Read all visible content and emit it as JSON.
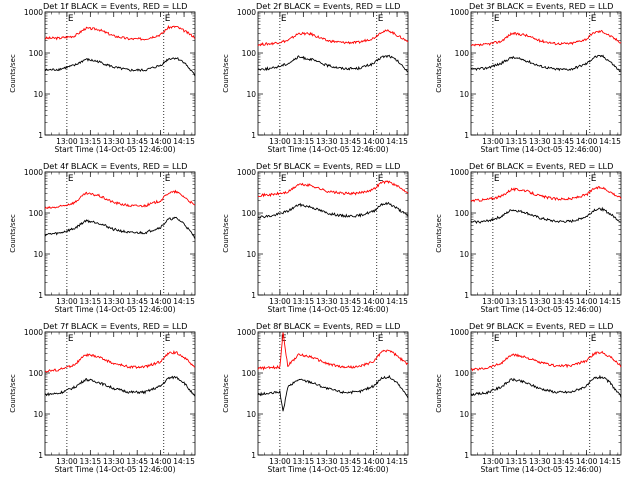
{
  "figure": {
    "footer_label": "Start Time (14-Oct-05 12:46:00)",
    "ylabel": "Counts/sec",
    "marker_letters": [
      "E",
      "E"
    ],
    "colors": {
      "events": "#000000",
      "lld": "#ff0000"
    }
  },
  "chart_data": [
    {
      "type": "line",
      "title": "Det 1f BLACK = Events, RED = LLD",
      "xlabel": "Start Time (14-Oct-05 12:46:00)",
      "ylabel": "Counts/sec",
      "yscale": "log",
      "ylim": [
        1,
        1000
      ],
      "xlim": [
        "12:46",
        "14:22"
      ],
      "xticks": [
        "13:00",
        "13:15",
        "13:30",
        "13:45",
        "14:00",
        "14:15"
      ],
      "yticks": [
        "1",
        "10",
        "100",
        "1000"
      ],
      "markers": [
        "13:00",
        "14:02"
      ],
      "series": [
        {
          "key": "lld",
          "color": "#ff0000",
          "x": [
            "12:46",
            "12:55",
            "13:05",
            "13:12",
            "13:20",
            "13:30",
            "13:40",
            "13:50",
            "14:00",
            "14:05",
            "14:10",
            "14:15",
            "14:22"
          ],
          "values": [
            230,
            230,
            260,
            400,
            380,
            260,
            220,
            220,
            280,
            420,
            440,
            350,
            240
          ]
        },
        {
          "key": "events",
          "color": "#000000",
          "x": [
            "12:46",
            "12:55",
            "13:05",
            "13:12",
            "13:20",
            "13:30",
            "13:40",
            "13:50",
            "14:00",
            "14:05",
            "14:10",
            "14:15",
            "14:22"
          ],
          "values": [
            38,
            40,
            50,
            70,
            62,
            45,
            38,
            38,
            50,
            72,
            76,
            60,
            28
          ]
        }
      ]
    },
    {
      "type": "line",
      "title": "Det 2f BLACK = Events, RED = LLD",
      "xlabel": "Start Time (14-Oct-05 12:46:00)",
      "ylabel": "Counts/sec",
      "yscale": "log",
      "ylim": [
        1,
        1000
      ],
      "xlim": [
        "12:46",
        "14:22"
      ],
      "xticks": [
        "13:00",
        "13:15",
        "13:30",
        "13:45",
        "14:00",
        "14:15"
      ],
      "yticks": [
        "1",
        "10",
        "100",
        "1000"
      ],
      "markers": [
        "13:00",
        "14:02"
      ],
      "series": [
        {
          "key": "lld",
          "color": "#ff0000",
          "x": [
            "12:46",
            "12:55",
            "13:05",
            "13:12",
            "13:20",
            "13:30",
            "13:40",
            "13:50",
            "14:00",
            "14:05",
            "14:10",
            "14:15",
            "14:22"
          ],
          "values": [
            160,
            170,
            200,
            300,
            290,
            200,
            180,
            180,
            230,
            330,
            350,
            270,
            190
          ]
        },
        {
          "key": "events",
          "color": "#000000",
          "x": [
            "12:46",
            "12:55",
            "13:05",
            "13:12",
            "13:20",
            "13:30",
            "13:40",
            "13:50",
            "14:00",
            "14:05",
            "14:10",
            "14:15",
            "14:22"
          ],
          "values": [
            40,
            42,
            55,
            80,
            70,
            50,
            42,
            42,
            55,
            80,
            85,
            65,
            35
          ]
        }
      ]
    },
    {
      "type": "line",
      "title": "Det 3f BLACK = Events, RED = LLD",
      "xlabel": "Start Time (14-Oct-05 12:46:00)",
      "ylabel": "Counts/sec",
      "yscale": "log",
      "ylim": [
        1,
        1000
      ],
      "xlim": [
        "12:46",
        "14:22"
      ],
      "xticks": [
        "13:00",
        "13:15",
        "13:30",
        "13:45",
        "14:00",
        "14:15"
      ],
      "yticks": [
        "1",
        "10",
        "100",
        "1000"
      ],
      "markers": [
        "13:00",
        "14:02"
      ],
      "series": [
        {
          "key": "lld",
          "color": "#ff0000",
          "x": [
            "12:46",
            "12:55",
            "13:05",
            "13:12",
            "13:20",
            "13:30",
            "13:40",
            "13:50",
            "14:00",
            "14:05",
            "14:10",
            "14:15",
            "14:22"
          ],
          "values": [
            150,
            160,
            190,
            300,
            280,
            200,
            170,
            170,
            220,
            320,
            340,
            260,
            180
          ]
        },
        {
          "key": "events",
          "color": "#000000",
          "x": [
            "12:46",
            "12:55",
            "13:05",
            "13:12",
            "13:20",
            "13:30",
            "13:40",
            "13:50",
            "14:00",
            "14:05",
            "14:10",
            "14:15",
            "14:22"
          ],
          "values": [
            40,
            42,
            55,
            78,
            68,
            48,
            40,
            40,
            55,
            80,
            85,
            62,
            34
          ]
        }
      ]
    },
    {
      "type": "line",
      "title": "Det 4f BLACK = Events, RED = LLD",
      "xlabel": "Start Time (14-Oct-05 12:46:00)",
      "ylabel": "Counts/sec",
      "yscale": "log",
      "ylim": [
        1,
        1000
      ],
      "xlim": [
        "12:46",
        "14:22"
      ],
      "xticks": [
        "13:00",
        "13:15",
        "13:30",
        "13:45",
        "14:00",
        "14:15"
      ],
      "yticks": [
        "1",
        "10",
        "100",
        "1000"
      ],
      "markers": [
        "13:00",
        "14:02"
      ],
      "series": [
        {
          "key": "lld",
          "color": "#ff0000",
          "x": [
            "12:46",
            "12:55",
            "13:05",
            "13:12",
            "13:20",
            "13:30",
            "13:40",
            "13:50",
            "14:00",
            "14:05",
            "14:10",
            "14:15",
            "14:22"
          ],
          "values": [
            130,
            140,
            180,
            300,
            270,
            180,
            150,
            150,
            200,
            310,
            330,
            250,
            150
          ]
        },
        {
          "key": "events",
          "color": "#000000",
          "x": [
            "12:46",
            "12:55",
            "13:05",
            "13:12",
            "13:20",
            "13:30",
            "13:40",
            "13:50",
            "14:00",
            "14:05",
            "14:10",
            "14:15",
            "14:22"
          ],
          "values": [
            30,
            32,
            42,
            65,
            58,
            40,
            33,
            33,
            45,
            70,
            75,
            55,
            25
          ]
        }
      ]
    },
    {
      "type": "line",
      "title": "Det 5f BLACK = Events, RED = LLD",
      "xlabel": "Start Time (14-Oct-05 12:46:00)",
      "ylabel": "Counts/sec",
      "yscale": "log",
      "ylim": [
        1,
        1000
      ],
      "xlim": [
        "12:46",
        "14:22"
      ],
      "xticks": [
        "13:00",
        "13:15",
        "13:30",
        "13:45",
        "14:00",
        "14:15"
      ],
      "yticks": [
        "1",
        "10",
        "100",
        "1000"
      ],
      "markers": [
        "13:00",
        "14:02"
      ],
      "series": [
        {
          "key": "lld",
          "color": "#ff0000",
          "x": [
            "12:46",
            "12:55",
            "13:05",
            "13:12",
            "13:20",
            "13:30",
            "13:40",
            "13:50",
            "14:00",
            "14:05",
            "14:10",
            "14:15",
            "14:22"
          ],
          "values": [
            270,
            280,
            320,
            500,
            470,
            340,
            300,
            300,
            380,
            560,
            580,
            450,
            320
          ]
        },
        {
          "key": "events",
          "color": "#000000",
          "x": [
            "12:46",
            "12:55",
            "13:05",
            "13:12",
            "13:20",
            "13:30",
            "13:40",
            "13:50",
            "14:00",
            "14:05",
            "14:10",
            "14:15",
            "14:22"
          ],
          "values": [
            80,
            85,
            110,
            160,
            140,
            100,
            85,
            85,
            110,
            165,
            170,
            130,
            85
          ]
        }
      ]
    },
    {
      "type": "line",
      "title": "Det 6f BLACK = Events, RED = LLD",
      "xlabel": "Start Time (14-Oct-05 12:46:00)",
      "ylabel": "Counts/sec",
      "yscale": "log",
      "ylim": [
        1,
        1000
      ],
      "xlim": [
        "12:46",
        "14:22"
      ],
      "xticks": [
        "13:00",
        "13:15",
        "13:30",
        "13:45",
        "14:00",
        "14:15"
      ],
      "yticks": [
        "1",
        "10",
        "100",
        "1000"
      ],
      "markers": [
        "13:00",
        "14:02"
      ],
      "series": [
        {
          "key": "lld",
          "color": "#ff0000",
          "x": [
            "12:46",
            "12:55",
            "13:05",
            "13:12",
            "13:20",
            "13:30",
            "13:40",
            "13:50",
            "14:00",
            "14:05",
            "14:10",
            "14:15",
            "14:22"
          ],
          "values": [
            200,
            210,
            250,
            380,
            360,
            260,
            220,
            220,
            280,
            400,
            420,
            330,
            230
          ]
        },
        {
          "key": "events",
          "color": "#000000",
          "x": [
            "12:46",
            "12:55",
            "13:05",
            "13:12",
            "13:20",
            "13:30",
            "13:40",
            "13:50",
            "14:00",
            "14:05",
            "14:10",
            "14:15",
            "14:22"
          ],
          "values": [
            60,
            62,
            80,
            120,
            105,
            75,
            62,
            62,
            82,
            120,
            125,
            95,
            60
          ]
        }
      ]
    },
    {
      "type": "line",
      "title": "Det 7f BLACK = Events, RED = LLD",
      "xlabel": "Start Time (14-Oct-05 12:46:00)",
      "ylabel": "Counts/sec",
      "yscale": "log",
      "ylim": [
        1,
        1000
      ],
      "xlim": [
        "12:46",
        "14:22"
      ],
      "xticks": [
        "13:00",
        "13:15",
        "13:30",
        "13:45",
        "14:00",
        "14:15"
      ],
      "yticks": [
        "1",
        "10",
        "100",
        "1000"
      ],
      "markers": [
        "13:00",
        "14:02"
      ],
      "series": [
        {
          "key": "lld",
          "color": "#ff0000",
          "x": [
            "12:46",
            "12:55",
            "13:05",
            "13:12",
            "13:20",
            "13:30",
            "13:40",
            "13:50",
            "14:00",
            "14:05",
            "14:10",
            "14:15",
            "14:22"
          ],
          "values": [
            110,
            120,
            160,
            280,
            250,
            170,
            140,
            140,
            190,
            300,
            320,
            240,
            140
          ]
        },
        {
          "key": "events",
          "color": "#000000",
          "x": [
            "12:46",
            "12:55",
            "13:05",
            "13:12",
            "13:20",
            "13:30",
            "13:40",
            "13:50",
            "14:00",
            "14:05",
            "14:10",
            "14:15",
            "14:22"
          ],
          "values": [
            30,
            32,
            45,
            70,
            60,
            42,
            34,
            34,
            48,
            75,
            80,
            58,
            26
          ]
        }
      ]
    },
    {
      "type": "line",
      "title": "Det 8f BLACK = Events, RED = LLD",
      "xlabel": "Start Time (14-Oct-05 12:46:00)",
      "ylabel": "Counts/sec",
      "yscale": "log",
      "ylim": [
        1,
        1000
      ],
      "xlim": [
        "12:46",
        "14:22"
      ],
      "xticks": [
        "13:00",
        "13:15",
        "13:30",
        "13:45",
        "14:00",
        "14:15"
      ],
      "yticks": [
        "1",
        "10",
        "100",
        "1000"
      ],
      "markers": [
        "13:00",
        "14:02"
      ],
      "series": [
        {
          "key": "lld",
          "color": "#ff0000",
          "x": [
            "12:46",
            "12:55",
            "13:00",
            "13:02",
            "13:05",
            "13:12",
            "13:20",
            "13:30",
            "13:40",
            "13:50",
            "14:00",
            "14:05",
            "14:10",
            "14:15",
            "14:22"
          ],
          "values": [
            130,
            135,
            140,
            1000,
            150,
            280,
            250,
            170,
            140,
            140,
            190,
            330,
            360,
            260,
            160
          ]
        },
        {
          "key": "events",
          "color": "#000000",
          "x": [
            "12:46",
            "12:55",
            "13:00",
            "13:02",
            "13:05",
            "13:12",
            "13:20",
            "13:30",
            "13:40",
            "13:50",
            "14:00",
            "14:05",
            "14:10",
            "14:15",
            "14:22"
          ],
          "values": [
            30,
            32,
            35,
            11,
            45,
            70,
            60,
            42,
            34,
            34,
            48,
            75,
            80,
            58,
            26
          ]
        }
      ]
    },
    {
      "type": "line",
      "title": "Det 9f BLACK = Events, RED = LLD",
      "xlabel": "Start Time (14-Oct-05 12:46:00)",
      "ylabel": "Counts/sec",
      "yscale": "log",
      "ylim": [
        1,
        1000
      ],
      "xlim": [
        "12:46",
        "14:22"
      ],
      "xticks": [
        "13:00",
        "13:15",
        "13:30",
        "13:45",
        "14:00",
        "14:15"
      ],
      "yticks": [
        "1",
        "10",
        "100",
        "1000"
      ],
      "markers": [
        "13:00",
        "14:02"
      ],
      "series": [
        {
          "key": "lld",
          "color": "#ff0000",
          "x": [
            "12:46",
            "12:55",
            "13:05",
            "13:12",
            "13:20",
            "13:30",
            "13:40",
            "13:50",
            "14:00",
            "14:05",
            "14:10",
            "14:15",
            "14:22"
          ],
          "values": [
            120,
            130,
            170,
            280,
            250,
            180,
            150,
            150,
            200,
            300,
            320,
            250,
            150
          ]
        },
        {
          "key": "events",
          "color": "#000000",
          "x": [
            "12:46",
            "12:55",
            "13:05",
            "13:12",
            "13:20",
            "13:30",
            "13:40",
            "13:50",
            "14:00",
            "14:05",
            "14:10",
            "14:15",
            "14:22"
          ],
          "values": [
            30,
            32,
            45,
            70,
            60,
            42,
            34,
            34,
            48,
            75,
            80,
            58,
            26
          ]
        }
      ]
    }
  ]
}
